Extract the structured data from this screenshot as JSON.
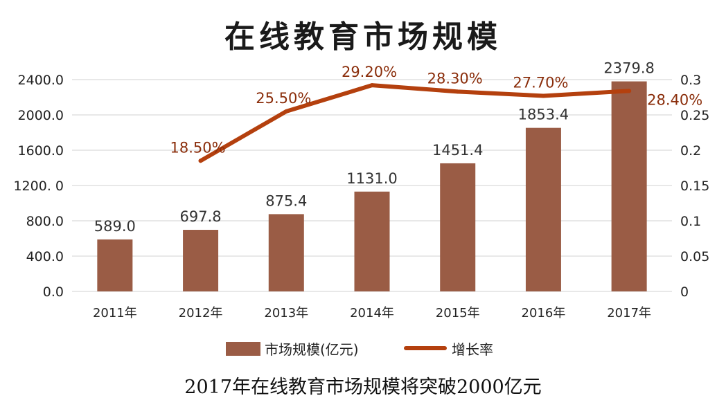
{
  "chart_data": {
    "type": "bar",
    "title": "在线教育市场规模",
    "caption": "2017年在线教育市场规模将突破2000亿元",
    "categories": [
      "2011年",
      "2012年",
      "2013年",
      "2014年",
      "2015年",
      "2016年",
      "2017年"
    ],
    "series": [
      {
        "name": "市场规模(亿元)",
        "type": "bar",
        "axis": "left",
        "values": [
          589.0,
          697.8,
          875.4,
          1131.0,
          1451.4,
          1853.4,
          2379.8
        ],
        "labels": [
          "589.0",
          "697.8",
          "875.4",
          "1131.0",
          "1451.4",
          "1853.4",
          "2379.8"
        ],
        "color": "#9a5c45"
      },
      {
        "name": "增长率",
        "type": "line",
        "axis": "right",
        "values": [
          null,
          0.185,
          0.255,
          0.292,
          0.283,
          0.277,
          0.284
        ],
        "labels": [
          "",
          "18.50%",
          "25.50%",
          "29.20%",
          "28.30%",
          "27.70%",
          "28.40%"
        ],
        "color": "#b4400e"
      }
    ],
    "y_left": {
      "lim": [
        0,
        2400
      ],
      "ticks": [
        "0.0",
        "400.0",
        "800.0",
        "1200. 0",
        "1600.0",
        "2000.0",
        "2400.0"
      ]
    },
    "y_right": {
      "lim": [
        0,
        0.3
      ],
      "ticks": [
        "0",
        "0.05",
        "0.1",
        "0.15",
        "0.2",
        "0.25",
        "0.3"
      ]
    },
    "grid": true,
    "legend": "bottom"
  }
}
